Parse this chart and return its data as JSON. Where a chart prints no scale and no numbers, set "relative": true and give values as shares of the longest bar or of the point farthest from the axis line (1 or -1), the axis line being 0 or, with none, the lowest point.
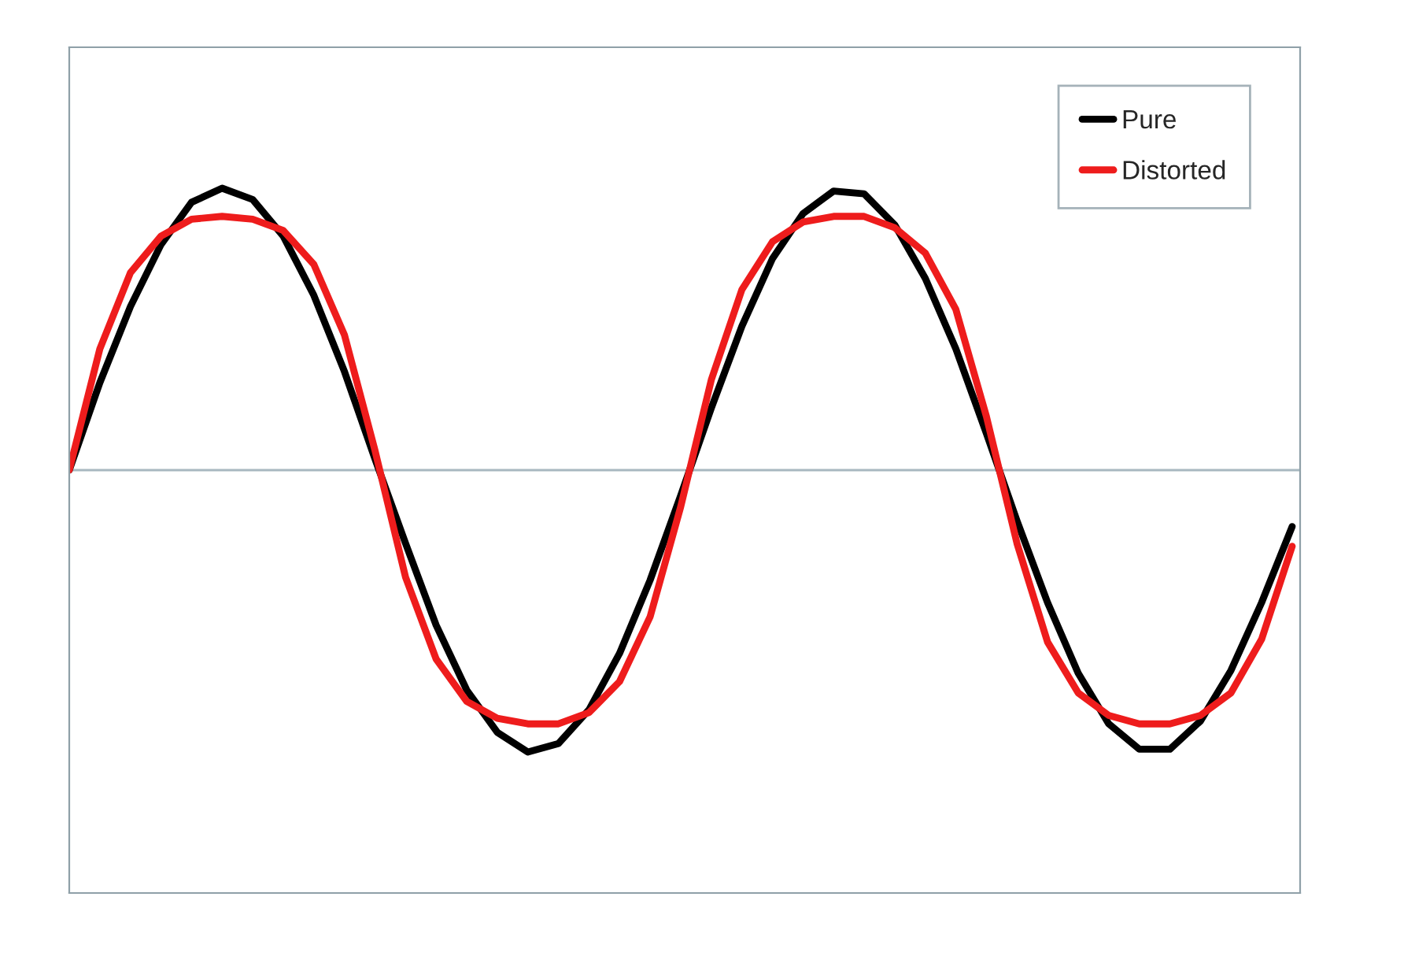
{
  "chart_data": {
    "type": "line",
    "relative": true,
    "categories": [
      null,
      null,
      null,
      null,
      null,
      null,
      null,
      null,
      null,
      null,
      null,
      null,
      null,
      null,
      null,
      null,
      null,
      null,
      null,
      null,
      null,
      null,
      null,
      null,
      null,
      null,
      null,
      null,
      null,
      null,
      null,
      null,
      null,
      null,
      null,
      null,
      null,
      null,
      null,
      null,
      null
    ],
    "series": [
      {
        "name": "Pure",
        "color": "#000000",
        "values": [
          0,
          0.31,
          0.58,
          0.8,
          0.95,
          1,
          0.96,
          0.83,
          0.62,
          0.35,
          0.04,
          -0.26,
          -0.55,
          -0.78,
          -0.93,
          -1,
          -0.97,
          -0.85,
          -0.65,
          -0.39,
          -0.09,
          0.22,
          0.51,
          0.75,
          0.91,
          0.99,
          0.98,
          0.87,
          0.68,
          0.43,
          0.13,
          -0.18,
          -0.47,
          -0.72,
          -0.9,
          -0.99,
          -0.99,
          -0.89,
          -0.71,
          -0.47,
          -0.2
        ]
      },
      {
        "name": "Distorted",
        "color": "#ee1c1c",
        "values": [
          0,
          0.43,
          0.7,
          0.83,
          0.89,
          0.9,
          0.89,
          0.85,
          0.73,
          0.48,
          0.07,
          -0.38,
          -0.67,
          -0.82,
          -0.88,
          -0.9,
          -0.9,
          -0.86,
          -0.75,
          -0.52,
          -0.13,
          0.32,
          0.64,
          0.81,
          0.88,
          0.9,
          0.9,
          0.86,
          0.77,
          0.57,
          0.19,
          -0.26,
          -0.61,
          -0.79,
          -0.87,
          -0.9,
          -0.9,
          -0.87,
          -0.79,
          -0.6,
          -0.27
        ]
      }
    ],
    "legend": "top right"
  }
}
